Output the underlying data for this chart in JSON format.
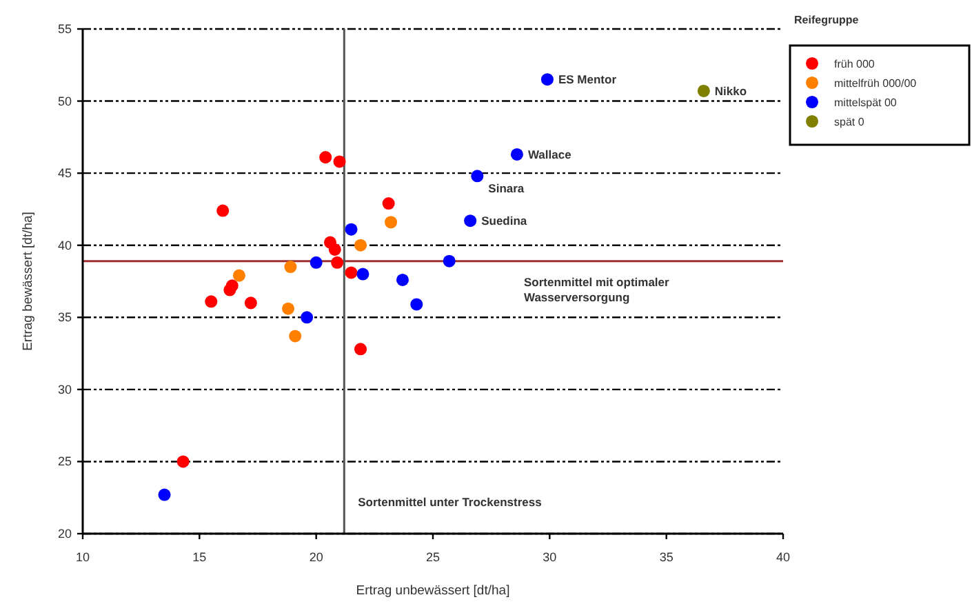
{
  "chart_data": {
    "type": "scatter",
    "xlabel": "Ertrag unbewässert [dt/ha]",
    "ylabel": "Ertrag bewässert [dt/ha]",
    "legend_title": "Reifegruppe",
    "xlim": [
      10,
      40
    ],
    "xticks": [
      10,
      15,
      20,
      25,
      30,
      35,
      40
    ],
    "ylim": [
      20,
      55
    ],
    "yticks": [
      20,
      25,
      30,
      35,
      40,
      45,
      50,
      55
    ],
    "grid": "y",
    "legend": "top right",
    "marker": "circle",
    "series": [
      {
        "name": "früh 000",
        "color": "#ff0000",
        "x": [
          20.4,
          21.0,
          16.0,
          23.1,
          20.6,
          20.8,
          20.9,
          21.5,
          16.3,
          16.4,
          15.5,
          17.2,
          21.9,
          14.3
        ],
        "values": [
          46.1,
          45.8,
          42.4,
          42.9,
          40.2,
          39.7,
          38.8,
          38.1,
          36.9,
          37.2,
          36.1,
          36.0,
          32.8,
          25.0
        ]
      },
      {
        "name": "mittelfrüh 000/00",
        "color": "#ff8000",
        "x": [
          16.7,
          18.9,
          18.8,
          19.1,
          21.9,
          23.2
        ],
        "values": [
          37.9,
          38.5,
          35.6,
          33.7,
          40.0,
          41.6
        ]
      },
      {
        "name": "mittelspät 00",
        "color": "#0000ff",
        "x": [
          20.0,
          21.5,
          22.0,
          23.7,
          24.3,
          19.6,
          25.7,
          26.6,
          26.9,
          28.6,
          29.9,
          13.5
        ],
        "values": [
          38.8,
          41.1,
          38.0,
          37.6,
          35.9,
          35.0,
          38.9,
          41.7,
          44.8,
          46.3,
          51.5,
          22.7
        ]
      },
      {
        "name": "spät 0",
        "color": "#808000",
        "x": [
          36.6
        ],
        "values": [
          50.7
        ]
      }
    ],
    "annotations": [
      {
        "text": "ES Mentor",
        "x": 29.9,
        "y": 51.5
      },
      {
        "text": "Nikko",
        "x": 36.6,
        "y": 50.7
      },
      {
        "text": "Wallace",
        "x": 28.6,
        "y": 46.3
      },
      {
        "text": "Sinara",
        "x": 26.9,
        "y": 44.8
      },
      {
        "text": "Suedina",
        "x": 26.6,
        "y": 41.7
      }
    ],
    "ref_lines": [
      {
        "axis": "y",
        "value": 38.9,
        "label": "Sortenmittel mit optimaler Wasserversorgung",
        "color": "#a03030"
      },
      {
        "axis": "x",
        "value": 21.2,
        "label": "Sortenmittel unter Trockenstress",
        "color": "#555555"
      }
    ]
  }
}
